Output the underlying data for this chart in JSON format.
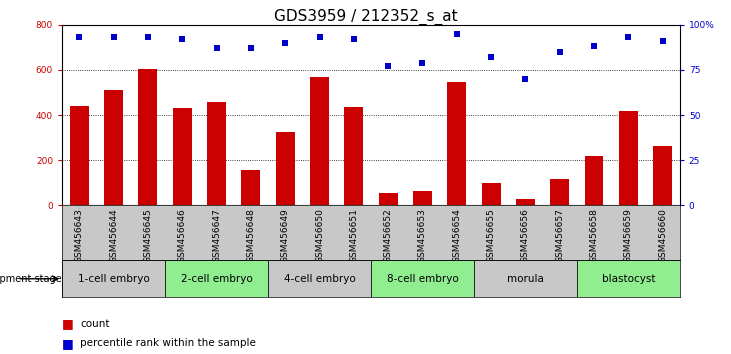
{
  "title": "GDS3959 / 212352_s_at",
  "samples": [
    "GSM456643",
    "GSM456644",
    "GSM456645",
    "GSM456646",
    "GSM456647",
    "GSM456648",
    "GSM456649",
    "GSM456650",
    "GSM456651",
    "GSM456652",
    "GSM456653",
    "GSM456654",
    "GSM456655",
    "GSM456656",
    "GSM456657",
    "GSM456658",
    "GSM456659",
    "GSM456660"
  ],
  "counts": [
    440,
    510,
    605,
    430,
    460,
    155,
    325,
    570,
    435,
    55,
    65,
    545,
    100,
    30,
    115,
    220,
    420,
    265
  ],
  "percentiles": [
    93,
    93,
    93,
    92,
    87,
    87,
    90,
    93,
    92,
    77,
    79,
    95,
    82,
    70,
    85,
    88,
    93,
    91
  ],
  "bar_color": "#cc0000",
  "dot_color": "#0000cc",
  "background_color": "#ffffff",
  "names_bg": "#c8c8c8",
  "stages": [
    {
      "label": "1-cell embryo",
      "start": 0,
      "end": 3,
      "color": "#c8c8c8"
    },
    {
      "label": "2-cell embryo",
      "start": 3,
      "end": 6,
      "color": "#90ee90"
    },
    {
      "label": "4-cell embryo",
      "start": 6,
      "end": 9,
      "color": "#c8c8c8"
    },
    {
      "label": "8-cell embryo",
      "start": 9,
      "end": 12,
      "color": "#90ee90"
    },
    {
      "label": "morula",
      "start": 12,
      "end": 15,
      "color": "#c8c8c8"
    },
    {
      "label": "blastocyst",
      "start": 15,
      "end": 18,
      "color": "#90ee90"
    }
  ],
  "ylim_left": [
    0,
    800
  ],
  "ylim_right": [
    0,
    100
  ],
  "yticks_left": [
    0,
    200,
    400,
    600,
    800
  ],
  "yticks_right": [
    0,
    25,
    50,
    75,
    100
  ],
  "ylabel_left_color": "#cc0000",
  "ylabel_right_color": "#0000cc",
  "legend_count_label": "count",
  "legend_pct_label": "percentile rank within the sample",
  "stage_row_label": "development stage",
  "title_fontsize": 11,
  "tick_fontsize": 6.5,
  "stage_fontsize": 7.5,
  "bar_width": 0.55
}
